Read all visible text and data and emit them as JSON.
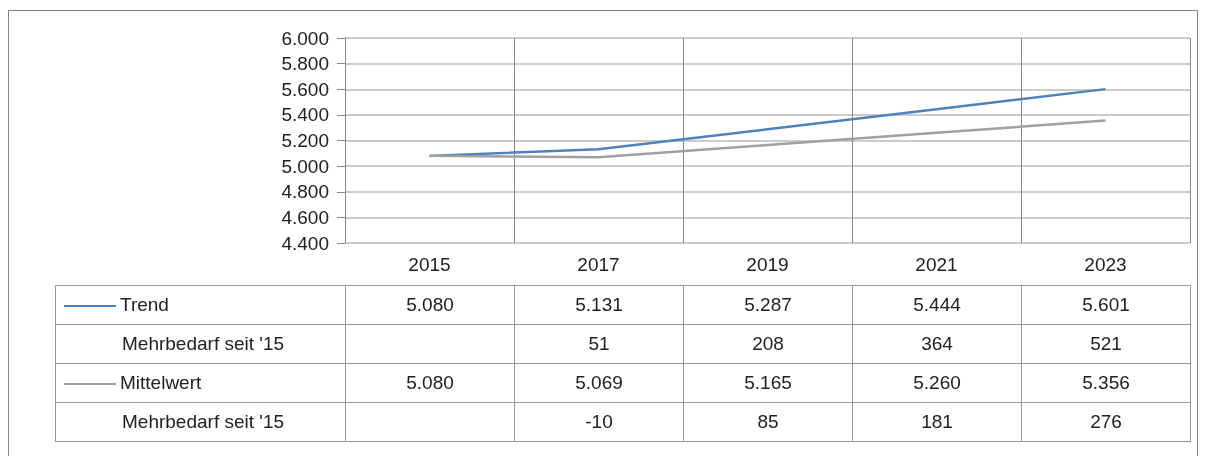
{
  "chart_data": {
    "type": "line",
    "categories": [
      "2015",
      "2017",
      "2019",
      "2021",
      "2023"
    ],
    "series": [
      {
        "name": "Trend",
        "color": "#4f81bd",
        "values": [
          5080,
          5131,
          5287,
          5444,
          5601
        ],
        "value_labels": [
          "5.080",
          "5.131",
          "5.287",
          "5.444",
          "5.601"
        ]
      },
      {
        "name": "Mittelwert",
        "color": "#a0a0a0",
        "values": [
          5080,
          5069,
          5165,
          5260,
          5356
        ],
        "value_labels": [
          "5.080",
          "5.069",
          "5.165",
          "5.260",
          "5.356"
        ]
      }
    ],
    "annotations": [
      "Mehrbedarf seit '15",
      "51",
      "208",
      "364",
      "521",
      "Mehrbedarf seit '15",
      "-10",
      "85",
      "181",
      "276"
    ],
    "ylim": [
      4400,
      6000
    ],
    "yticks": [
      {
        "value": 4400,
        "label": "4.400"
      },
      {
        "value": 4600,
        "label": "4.600"
      },
      {
        "value": 4800,
        "label": "4.800"
      },
      {
        "value": 5000,
        "label": "5.000"
      },
      {
        "value": 5200,
        "label": "5.200"
      },
      {
        "value": 5400,
        "label": "5.400"
      },
      {
        "value": 5600,
        "label": "5.600"
      },
      {
        "value": 5800,
        "label": "5.800"
      },
      {
        "value": 6000,
        "label": "6.000"
      }
    ],
    "grid": true,
    "legend": "bottom",
    "marker": "none",
    "line_style": "solid"
  }
}
